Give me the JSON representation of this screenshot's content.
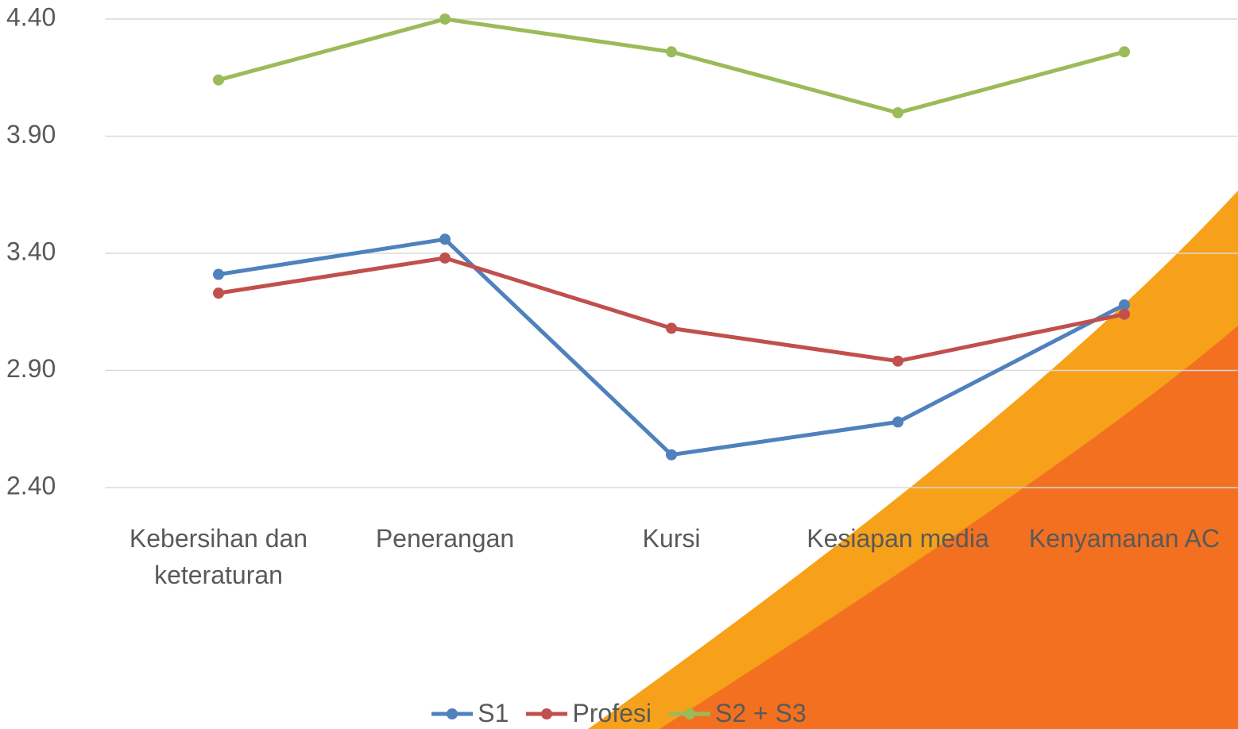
{
  "chart_data": {
    "type": "line",
    "categories": [
      "Kebersihan dan keteraturan",
      "Penerangan",
      "Kursi",
      "Kesiapan media",
      "Kenyamanan AC"
    ],
    "series": [
      {
        "name": "S1",
        "color": "#4f81bd",
        "values": [
          3.31,
          3.46,
          2.54,
          2.68,
          3.18
        ]
      },
      {
        "name": "Profesi",
        "color": "#c0504d",
        "values": [
          3.23,
          3.38,
          3.08,
          2.94,
          3.14
        ]
      },
      {
        "name": "S2 + S3",
        "color": "#9bbb59",
        "values": [
          4.14,
          4.4,
          4.26,
          4.0,
          4.26
        ]
      }
    ],
    "ylim": [
      2.4,
      4.4
    ],
    "yticks": [
      {
        "value": 2.4,
        "label": "2.40"
      },
      {
        "value": 2.9,
        "label": "2.90"
      },
      {
        "value": 3.4,
        "label": "3.40"
      },
      {
        "value": 3.9,
        "label": "3.90"
      },
      {
        "value": 4.4,
        "label": "4.40"
      }
    ],
    "grid": true,
    "legend": "bottom"
  }
}
